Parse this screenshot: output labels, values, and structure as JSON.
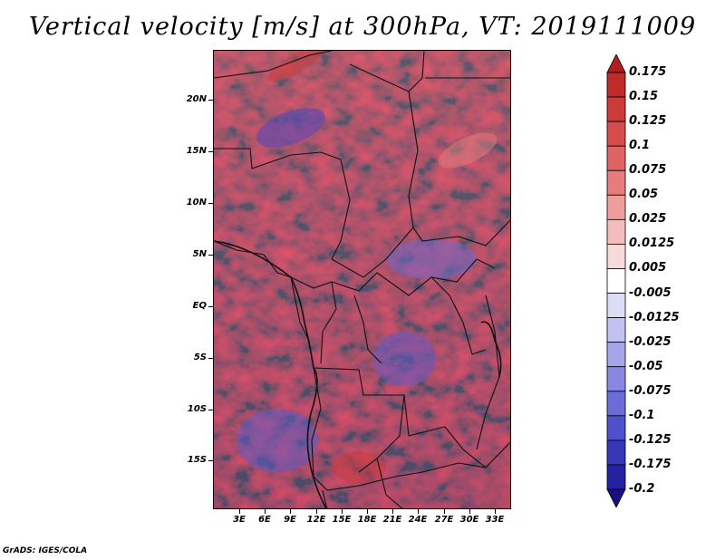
{
  "title": "Vertical velocity [m/s] at 300hPa, VT: 2019111009",
  "credit": "GrADS: IGES/COLA",
  "latitude_labels": [
    "20N",
    "15N",
    "10N",
    "5N",
    "EQ",
    "5S",
    "10S",
    "15S"
  ],
  "longitude_labels": [
    "3E",
    "6E",
    "9E",
    "12E",
    "15E",
    "18E",
    "21E",
    "24E",
    "27E",
    "30E",
    "33E"
  ],
  "colorbar": {
    "labels": [
      "0.175",
      "0.15",
      "0.125",
      "0.1",
      "0.075",
      "0.05",
      "0.025",
      "0.0125",
      "0.005",
      "-0.005",
      "-0.0125",
      "-0.025",
      "-0.05",
      "-0.075",
      "-0.1",
      "-0.125",
      "-0.175",
      "-0.2"
    ],
    "colors": [
      "#b01e1e",
      "#c02a2a",
      "#cc3a3a",
      "#d64c4c",
      "#df6363",
      "#e67c7c",
      "#ee9c9c",
      "#f4bcbc",
      "#f9dada",
      "#ffffff",
      "#dcdcf7",
      "#c2c2f2",
      "#a5a5ec",
      "#8888e4",
      "#6b6bd9",
      "#5050cc",
      "#3636b8",
      "#2222a2",
      "#1a1080"
    ]
  }
}
